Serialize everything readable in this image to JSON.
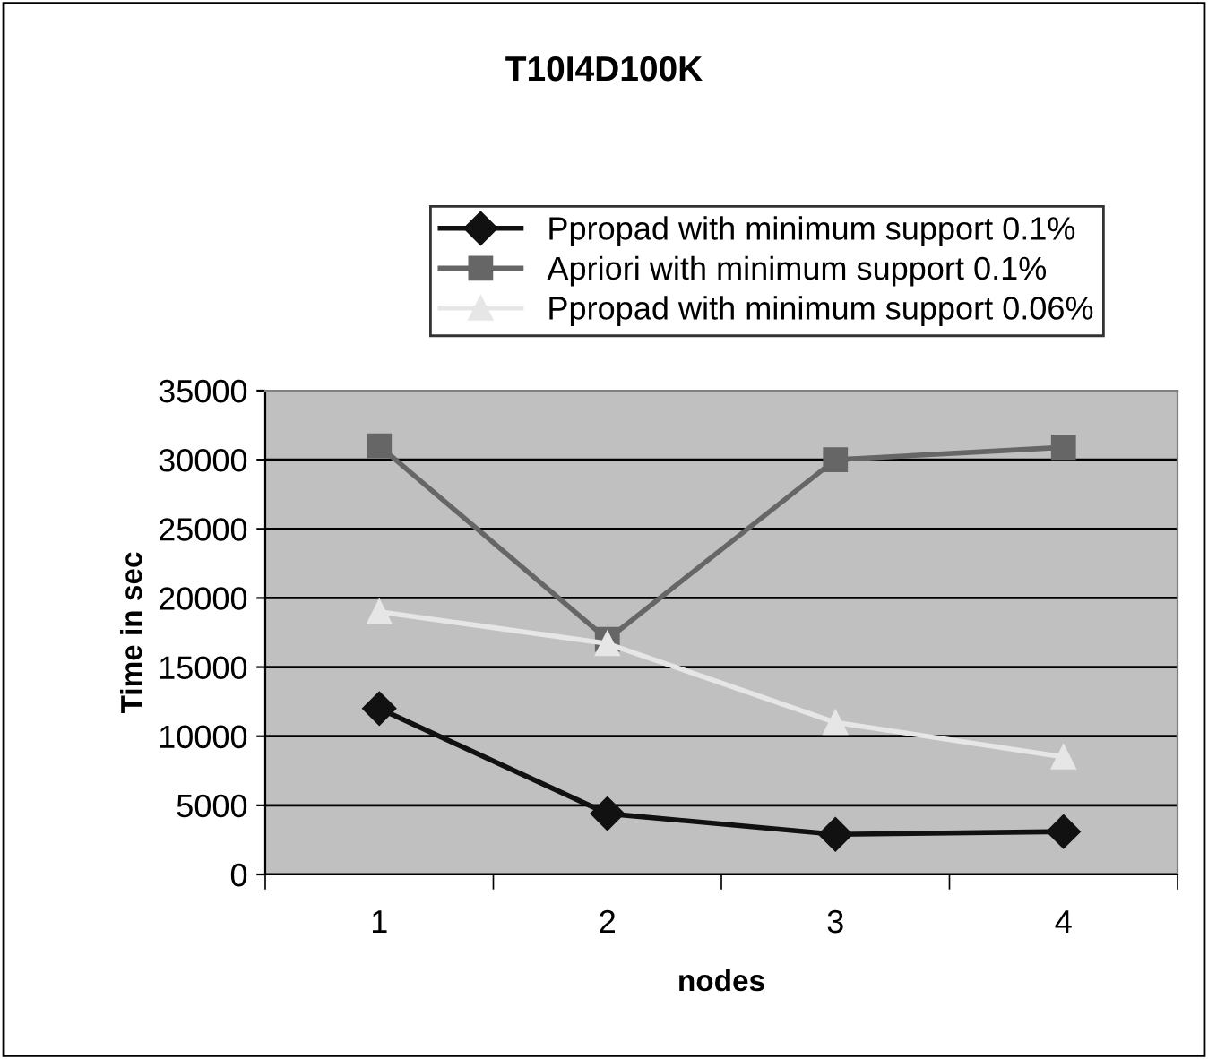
{
  "chart_data": {
    "type": "line",
    "title": "T10I4D100K",
    "xlabel": "nodes",
    "ylabel": "Time in sec",
    "categories": [
      "1",
      "2",
      "3",
      "4"
    ],
    "series": [
      {
        "name": "Ppropad with minimum support 0.1%",
        "color": "#111111",
        "marker": "diamond",
        "values": [
          12000,
          4400,
          2900,
          3100
        ]
      },
      {
        "name": "Apriori with minimum support 0.1%",
        "color": "#666666",
        "marker": "square",
        "values": [
          31000,
          17000,
          30000,
          30900
        ]
      },
      {
        "name": "Ppropad with minimum support 0.06%",
        "color": "#e6e6e6",
        "marker": "triangle",
        "values": [
          19000,
          16700,
          11000,
          8500
        ]
      }
    ],
    "ylim": [
      0,
      35000
    ],
    "yticks": [
      0,
      5000,
      10000,
      15000,
      20000,
      25000,
      30000,
      35000
    ],
    "grid": "y",
    "legend": "top",
    "line_style": "solid"
  }
}
